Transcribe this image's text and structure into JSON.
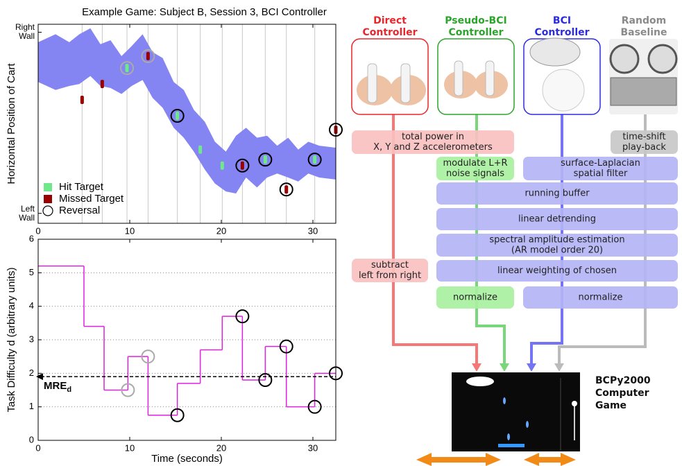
{
  "chart_data": [
    {
      "type": "scatter",
      "title": "Example Game:  Subject B, Session 3, BCI Controller",
      "ylabel": "Horizontal Position of Cart",
      "xlim": [
        0,
        32.5
      ],
      "xticks": [
        0,
        10,
        20,
        30
      ],
      "ylim": [
        0,
        1
      ],
      "yticks": [
        {
          "value": 0.05,
          "label": "Left\nWall"
        },
        {
          "value": 0.96,
          "label": "Right\nWall"
        }
      ],
      "grid": true,
      "legend": "lower left",
      "band": {
        "color": "#8484f2",
        "x": [
          0,
          1.9,
          3.4,
          4.5,
          5.7,
          6.8,
          7.9,
          9.1,
          10.2,
          11.4,
          12.5,
          13.6,
          14.8,
          15.9,
          17.0,
          18.2,
          19.3,
          20.5,
          21.6,
          22.7,
          23.9,
          25.0,
          26.1,
          27.3,
          28.4,
          29.5,
          30.7,
          32.5
        ],
        "upper": [
          0.91,
          0.95,
          0.91,
          0.95,
          0.98,
          0.9,
          0.92,
          0.84,
          0.89,
          0.95,
          0.86,
          0.83,
          0.71,
          0.67,
          0.57,
          0.51,
          0.41,
          0.36,
          0.44,
          0.48,
          0.43,
          0.44,
          0.39,
          0.43,
          0.37,
          0.41,
          0.39,
          0.38
        ],
        "lower": [
          0.71,
          0.67,
          0.69,
          0.7,
          0.74,
          0.69,
          0.68,
          0.65,
          0.69,
          0.72,
          0.63,
          0.58,
          0.48,
          0.43,
          0.36,
          0.27,
          0.2,
          0.16,
          0.15,
          0.23,
          0.18,
          0.23,
          0.25,
          0.23,
          0.21,
          0.25,
          0.23,
          0.22
        ]
      },
      "series": [
        {
          "name": "Hit Target",
          "color": "#6ee88a",
          "marker": "bar",
          "x": [
            9.7,
            15.2,
            17.7,
            20.1,
            24.8,
            30.2
          ],
          "y": [
            0.78,
            0.54,
            0.37,
            0.29,
            0.32,
            0.32
          ]
        },
        {
          "name": "Missed Target",
          "color": "#9a0000",
          "marker": "bar",
          "x": [
            4.8,
            7.0,
            12.0,
            22.3,
            27.1,
            32.5
          ],
          "y": [
            0.62,
            0.7,
            0.84,
            0.29,
            0.17,
            0.47
          ]
        },
        {
          "name": "Reversal",
          "color": "#000000",
          "marker": "circle",
          "x": [
            9.7,
            12.0,
            15.2,
            22.3,
            24.8,
            27.1,
            30.2,
            32.5
          ],
          "y": [
            0.78,
            0.84,
            0.54,
            0.29,
            0.32,
            0.17,
            0.32,
            0.47
          ],
          "colors": [
            "#aaaaaa",
            "#aaaaaa",
            "#000000",
            "#000000",
            "#000000",
            "#000000",
            "#000000",
            "#000000"
          ]
        }
      ]
    },
    {
      "type": "step",
      "xlabel": "Time (seconds)",
      "ylabel": "Task Difficulty d (arbitrary units)",
      "xlim": [
        0,
        32.5
      ],
      "xticks": [
        0,
        10,
        20,
        30
      ],
      "ylim": [
        0,
        6
      ],
      "yticks": [
        0,
        1,
        2,
        3,
        4,
        5,
        6
      ],
      "grid": true,
      "color": "#e020e0",
      "x": [
        0,
        5,
        7.2,
        9.8,
        12,
        15.2,
        17.7,
        20.1,
        22.3,
        24.8,
        27.1,
        30.2,
        32.5
      ],
      "values": [
        5.2,
        3.4,
        1.5,
        2.5,
        0.75,
        1.7,
        2.7,
        3.7,
        1.8,
        2.8,
        1.0,
        2.0,
        2.0
      ],
      "markers": {
        "x": [
          9.8,
          12,
          15.2,
          22.3,
          24.8,
          27.1,
          30.2,
          32.5
        ],
        "y": [
          1.5,
          2.5,
          0.75,
          3.7,
          1.8,
          2.8,
          1.0,
          2.0
        ],
        "colors": [
          "#aaaaaa",
          "#aaaaaa",
          "#000000",
          "#000000",
          "#000000",
          "#000000",
          "#000000",
          "#000000"
        ]
      },
      "reference": {
        "value": 1.9,
        "label": "MRE",
        "subscript": "d"
      }
    }
  ],
  "diagram": {
    "columns": [
      {
        "title": [
          "Direct",
          "Controller"
        ],
        "color": "#e8262b",
        "light": "#f9c0c0",
        "arrow": "#f77676"
      },
      {
        "title": [
          "Pseudo-BCI",
          "Controller"
        ],
        "color": "#2aa52a",
        "light": "#a8f0a0",
        "arrow": "#7ad67a"
      },
      {
        "title": [
          "BCI",
          "Controller"
        ],
        "color": "#2b2be0",
        "light": "#b4b4f6",
        "arrow": "#7474f4"
      },
      {
        "title": [
          "Random",
          "Baseline"
        ],
        "color": "#8a8a8a",
        "light": "#c8c8c8",
        "arrow": "#bbbbbb"
      }
    ],
    "steps": [
      {
        "column": 0,
        "lines": [
          "total power in",
          "X, Y and Z accelerometers"
        ]
      },
      {
        "column": 3,
        "lines": [
          "time-shift",
          "play-back"
        ]
      },
      {
        "column": 1,
        "lines": [
          "modulate L+R",
          "noise signals"
        ]
      },
      {
        "column": 2,
        "lines": [
          "surface-Laplacian",
          "spatial filter"
        ]
      },
      {
        "column": 2,
        "lines": [
          "running buffer"
        ]
      },
      {
        "column": 2,
        "lines": [
          "linear detrending"
        ]
      },
      {
        "column": 2,
        "lines": [
          "spectral amplitude estimation",
          "(AR model order 20)"
        ]
      },
      {
        "column": 2,
        "lines": [
          "linear weighting of chosen"
        ]
      },
      {
        "column": 0,
        "lines": [
          "subtract",
          "left from right"
        ]
      },
      {
        "column": 1,
        "lines": [
          "normalize"
        ]
      },
      {
        "column": 2,
        "lines": [
          "normalize"
        ]
      }
    ],
    "game": {
      "lines": [
        "BCPy2000",
        "Computer",
        "Game"
      ]
    }
  }
}
